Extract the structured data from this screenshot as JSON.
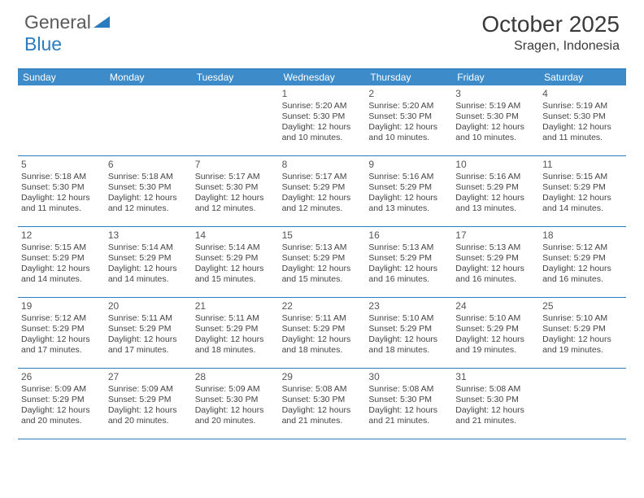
{
  "logo": {
    "general": "General",
    "blue": "Blue"
  },
  "title": "October 2025",
  "location": "Sragen, Indonesia",
  "colors": {
    "header_bg": "#3d8cc9",
    "border": "#2b7bbf",
    "text": "#333333",
    "logo_gray": "#5a5a5a",
    "logo_blue": "#2b7bbf"
  },
  "day_names": [
    "Sunday",
    "Monday",
    "Tuesday",
    "Wednesday",
    "Thursday",
    "Friday",
    "Saturday"
  ],
  "weeks": [
    [
      null,
      null,
      null,
      {
        "n": "1",
        "sr": "5:20 AM",
        "ss": "5:30 PM",
        "dl": "12 hours and 10 minutes."
      },
      {
        "n": "2",
        "sr": "5:20 AM",
        "ss": "5:30 PM",
        "dl": "12 hours and 10 minutes."
      },
      {
        "n": "3",
        "sr": "5:19 AM",
        "ss": "5:30 PM",
        "dl": "12 hours and 10 minutes."
      },
      {
        "n": "4",
        "sr": "5:19 AM",
        "ss": "5:30 PM",
        "dl": "12 hours and 11 minutes."
      }
    ],
    [
      {
        "n": "5",
        "sr": "5:18 AM",
        "ss": "5:30 PM",
        "dl": "12 hours and 11 minutes."
      },
      {
        "n": "6",
        "sr": "5:18 AM",
        "ss": "5:30 PM",
        "dl": "12 hours and 12 minutes."
      },
      {
        "n": "7",
        "sr": "5:17 AM",
        "ss": "5:30 PM",
        "dl": "12 hours and 12 minutes."
      },
      {
        "n": "8",
        "sr": "5:17 AM",
        "ss": "5:29 PM",
        "dl": "12 hours and 12 minutes."
      },
      {
        "n": "9",
        "sr": "5:16 AM",
        "ss": "5:29 PM",
        "dl": "12 hours and 13 minutes."
      },
      {
        "n": "10",
        "sr": "5:16 AM",
        "ss": "5:29 PM",
        "dl": "12 hours and 13 minutes."
      },
      {
        "n": "11",
        "sr": "5:15 AM",
        "ss": "5:29 PM",
        "dl": "12 hours and 14 minutes."
      }
    ],
    [
      {
        "n": "12",
        "sr": "5:15 AM",
        "ss": "5:29 PM",
        "dl": "12 hours and 14 minutes."
      },
      {
        "n": "13",
        "sr": "5:14 AM",
        "ss": "5:29 PM",
        "dl": "12 hours and 14 minutes."
      },
      {
        "n": "14",
        "sr": "5:14 AM",
        "ss": "5:29 PM",
        "dl": "12 hours and 15 minutes."
      },
      {
        "n": "15",
        "sr": "5:13 AM",
        "ss": "5:29 PM",
        "dl": "12 hours and 15 minutes."
      },
      {
        "n": "16",
        "sr": "5:13 AM",
        "ss": "5:29 PM",
        "dl": "12 hours and 16 minutes."
      },
      {
        "n": "17",
        "sr": "5:13 AM",
        "ss": "5:29 PM",
        "dl": "12 hours and 16 minutes."
      },
      {
        "n": "18",
        "sr": "5:12 AM",
        "ss": "5:29 PM",
        "dl": "12 hours and 16 minutes."
      }
    ],
    [
      {
        "n": "19",
        "sr": "5:12 AM",
        "ss": "5:29 PM",
        "dl": "12 hours and 17 minutes."
      },
      {
        "n": "20",
        "sr": "5:11 AM",
        "ss": "5:29 PM",
        "dl": "12 hours and 17 minutes."
      },
      {
        "n": "21",
        "sr": "5:11 AM",
        "ss": "5:29 PM",
        "dl": "12 hours and 18 minutes."
      },
      {
        "n": "22",
        "sr": "5:11 AM",
        "ss": "5:29 PM",
        "dl": "12 hours and 18 minutes."
      },
      {
        "n": "23",
        "sr": "5:10 AM",
        "ss": "5:29 PM",
        "dl": "12 hours and 18 minutes."
      },
      {
        "n": "24",
        "sr": "5:10 AM",
        "ss": "5:29 PM",
        "dl": "12 hours and 19 minutes."
      },
      {
        "n": "25",
        "sr": "5:10 AM",
        "ss": "5:29 PM",
        "dl": "12 hours and 19 minutes."
      }
    ],
    [
      {
        "n": "26",
        "sr": "5:09 AM",
        "ss": "5:29 PM",
        "dl": "12 hours and 20 minutes."
      },
      {
        "n": "27",
        "sr": "5:09 AM",
        "ss": "5:29 PM",
        "dl": "12 hours and 20 minutes."
      },
      {
        "n": "28",
        "sr": "5:09 AM",
        "ss": "5:30 PM",
        "dl": "12 hours and 20 minutes."
      },
      {
        "n": "29",
        "sr": "5:08 AM",
        "ss": "5:30 PM",
        "dl": "12 hours and 21 minutes."
      },
      {
        "n": "30",
        "sr": "5:08 AM",
        "ss": "5:30 PM",
        "dl": "12 hours and 21 minutes."
      },
      {
        "n": "31",
        "sr": "5:08 AM",
        "ss": "5:30 PM",
        "dl": "12 hours and 21 minutes."
      },
      null
    ]
  ],
  "labels": {
    "sunrise": "Sunrise:",
    "sunset": "Sunset:",
    "daylight": "Daylight:"
  }
}
